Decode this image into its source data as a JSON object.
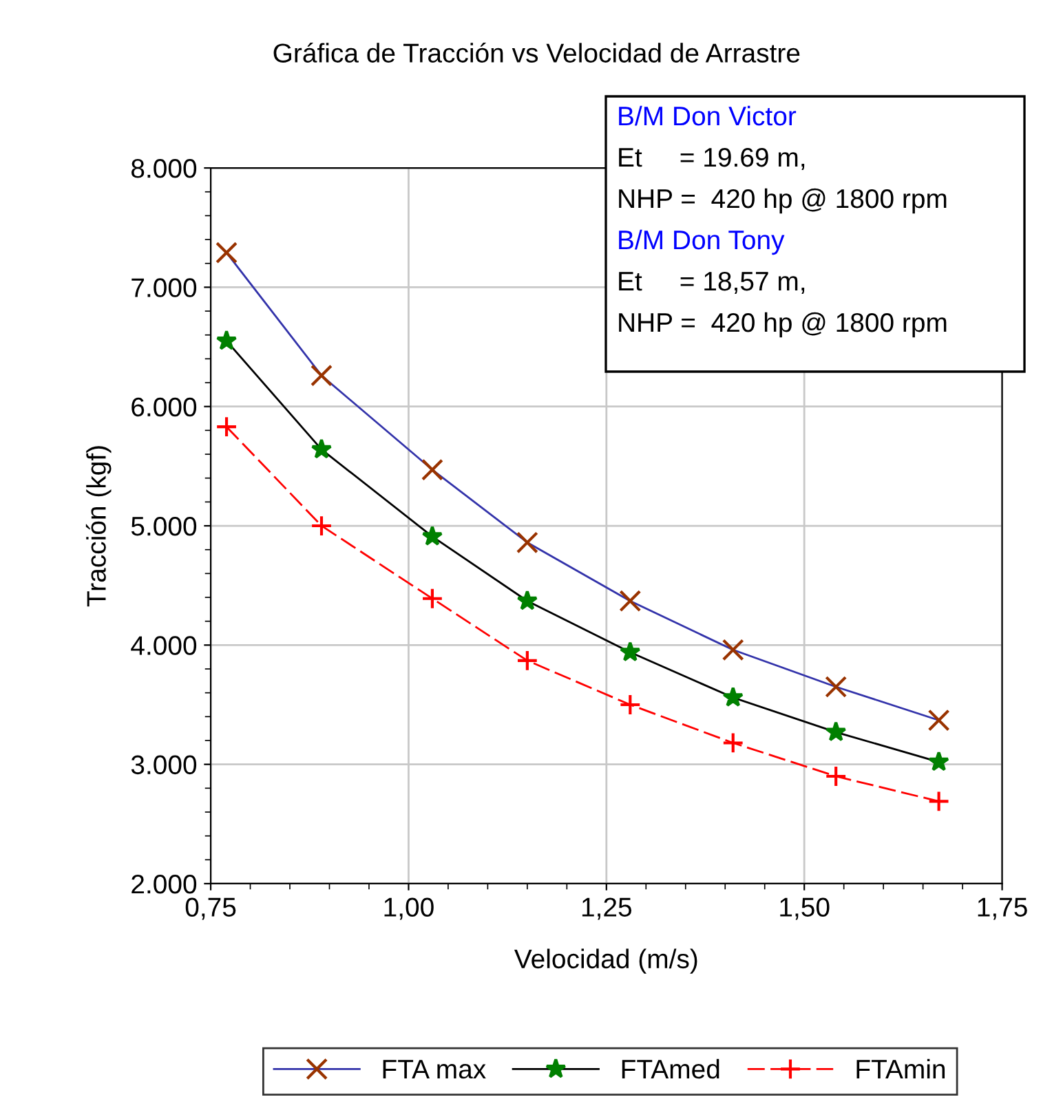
{
  "chart_data": {
    "type": "line",
    "title": "Gráfica de Tracción vs Velocidad de Arrastre",
    "xlabel": "Velocidad (m/s)",
    "ylabel": "Tracción (kgf)",
    "x": [
      0.77,
      0.89,
      1.03,
      1.15,
      1.28,
      1.41,
      1.54,
      1.67
    ],
    "series": [
      {
        "name": "FTA max",
        "color": "#3333aa",
        "marker": "cross",
        "line_style": "solid",
        "values": [
          7290,
          6260,
          5470,
          4860,
          4370,
          3960,
          3650,
          3370
        ]
      },
      {
        "name": "FTAmed",
        "color": "#000000",
        "marker": "star",
        "line_style": "solid",
        "values": [
          6550,
          5640,
          4910,
          4370,
          3940,
          3560,
          3270,
          3020
        ]
      },
      {
        "name": "FTAmin",
        "color": "#ff0000",
        "marker": "plus",
        "line_style": "dashed",
        "values": [
          5830,
          5000,
          4390,
          3870,
          3500,
          3180,
          2900,
          2690
        ]
      }
    ],
    "xlim": [
      0.75,
      1.75
    ],
    "xticks": [
      {
        "value": 0.75,
        "label": "0,75"
      },
      {
        "value": 1.0,
        "label": "1,00"
      },
      {
        "value": 1.25,
        "label": "1,25"
      },
      {
        "value": 1.5,
        "label": "1,50"
      },
      {
        "value": 1.75,
        "label": "1,75"
      }
    ],
    "ylim": [
      2000,
      8000
    ],
    "yticks": [
      {
        "value": 2000,
        "label": "2.000"
      },
      {
        "value": 3000,
        "label": "3.000"
      },
      {
        "value": 4000,
        "label": "4.000"
      },
      {
        "value": 5000,
        "label": "5.000"
      },
      {
        "value": 6000,
        "label": "6.000"
      },
      {
        "value": 7000,
        "label": "7.000"
      },
      {
        "value": 8000,
        "label": "8.000"
      }
    ],
    "grid": true,
    "legend": "bottom",
    "annotations": [
      "B/M Don Victor",
      "Et     = 19.69 m,",
      "NHP =  420 hp @ 1800 rpm",
      "B/M Don Tony",
      "Et     = 18,57 m,",
      "NHP =  420 hp @ 1800 rpm"
    ]
  }
}
